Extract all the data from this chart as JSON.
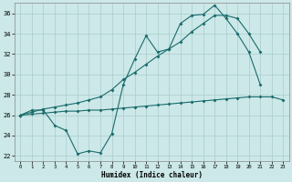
{
  "xlabel": "Humidex (Indice chaleur)",
  "xlim": [
    -0.5,
    23.5
  ],
  "ylim": [
    21.5,
    37.0
  ],
  "yticks": [
    22,
    24,
    26,
    28,
    30,
    32,
    34,
    36
  ],
  "xticks": [
    0,
    1,
    2,
    3,
    4,
    5,
    6,
    7,
    8,
    9,
    10,
    11,
    12,
    13,
    14,
    15,
    16,
    17,
    18,
    19,
    20,
    21,
    22,
    23
  ],
  "bg_color": "#cce8e8",
  "grid_color": "#aacccc",
  "line_color": "#1a6b6b",
  "line1_y": [
    26.0,
    26.5,
    26.5,
    25.0,
    24.5,
    22.2,
    22.5,
    22.3,
    24.2,
    29.0,
    31.5,
    33.8,
    32.2,
    32.5,
    35.0,
    35.8,
    35.9,
    36.8,
    35.5,
    34.0,
    32.2,
    29.0,
    null,
    null
  ],
  "line2_y": [
    26.0,
    26.3,
    26.6,
    26.8,
    27.0,
    27.2,
    27.5,
    27.8,
    28.5,
    29.5,
    30.2,
    31.0,
    31.8,
    32.5,
    33.2,
    34.2,
    35.0,
    35.8,
    35.8,
    35.5,
    34.0,
    32.2,
    null,
    null
  ],
  "line3_y": [
    26.0,
    26.1,
    26.2,
    26.3,
    26.4,
    26.4,
    26.5,
    26.5,
    26.6,
    26.7,
    26.8,
    26.9,
    27.0,
    27.1,
    27.2,
    27.3,
    27.4,
    27.5,
    27.6,
    27.7,
    27.8,
    27.8,
    27.8,
    27.5
  ]
}
